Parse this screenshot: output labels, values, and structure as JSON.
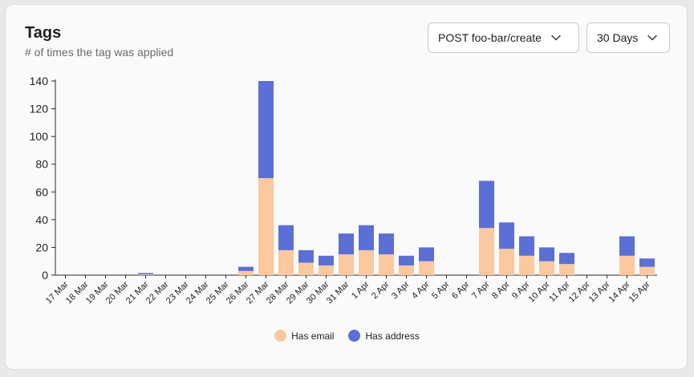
{
  "card": {
    "title": "Tags",
    "subtitle": "# of times the tag was applied"
  },
  "controls": {
    "endpoint": "POST foo-bar/create",
    "range": "30 Days",
    "chevron_icon": "chevron-down-icon"
  },
  "colors": {
    "has_email": "#fbc89f",
    "has_address": "#5b6fd4"
  },
  "chart_data": {
    "type": "bar",
    "stacked": true,
    "categories": [
      "17 Mar",
      "18 Mar",
      "19 Mar",
      "20 Mar",
      "21 Mar",
      "22 Mar",
      "23 Mar",
      "24 Mar",
      "25 Mar",
      "26 Mar",
      "27 Mar",
      "28 Mar",
      "29 Mar",
      "30 Mar",
      "31 Mar",
      "1 Apr",
      "2 Apr",
      "3 Apr",
      "4 Apr",
      "5 Apr",
      "6 Apr",
      "7 Apr",
      "8 Apr",
      "9 Apr",
      "10 Apr",
      "11 Apr",
      "12 Apr",
      "13 Apr",
      "14 Apr",
      "15 Apr"
    ],
    "series": [
      {
        "name": "Has email",
        "values": [
          0,
          0,
          0,
          0,
          0.5,
          0,
          0,
          0,
          0,
          3,
          70,
          18,
          9,
          7,
          15,
          18,
          15,
          7,
          10,
          0,
          0,
          34,
          19,
          14,
          10,
          8,
          0,
          0,
          14,
          6
        ]
      },
      {
        "name": "Has address",
        "values": [
          0,
          0,
          0,
          0,
          1,
          0,
          0,
          0,
          0,
          3,
          70,
          18,
          9,
          7,
          15,
          18,
          15,
          7,
          10,
          0,
          0,
          34,
          19,
          14,
          10,
          8,
          0,
          0,
          14,
          6
        ]
      }
    ],
    "yticks": [
      0,
      20,
      40,
      60,
      80,
      100,
      120,
      140
    ],
    "ylim": [
      0,
      140
    ],
    "legend_position": "bottom-center",
    "grid": false
  }
}
